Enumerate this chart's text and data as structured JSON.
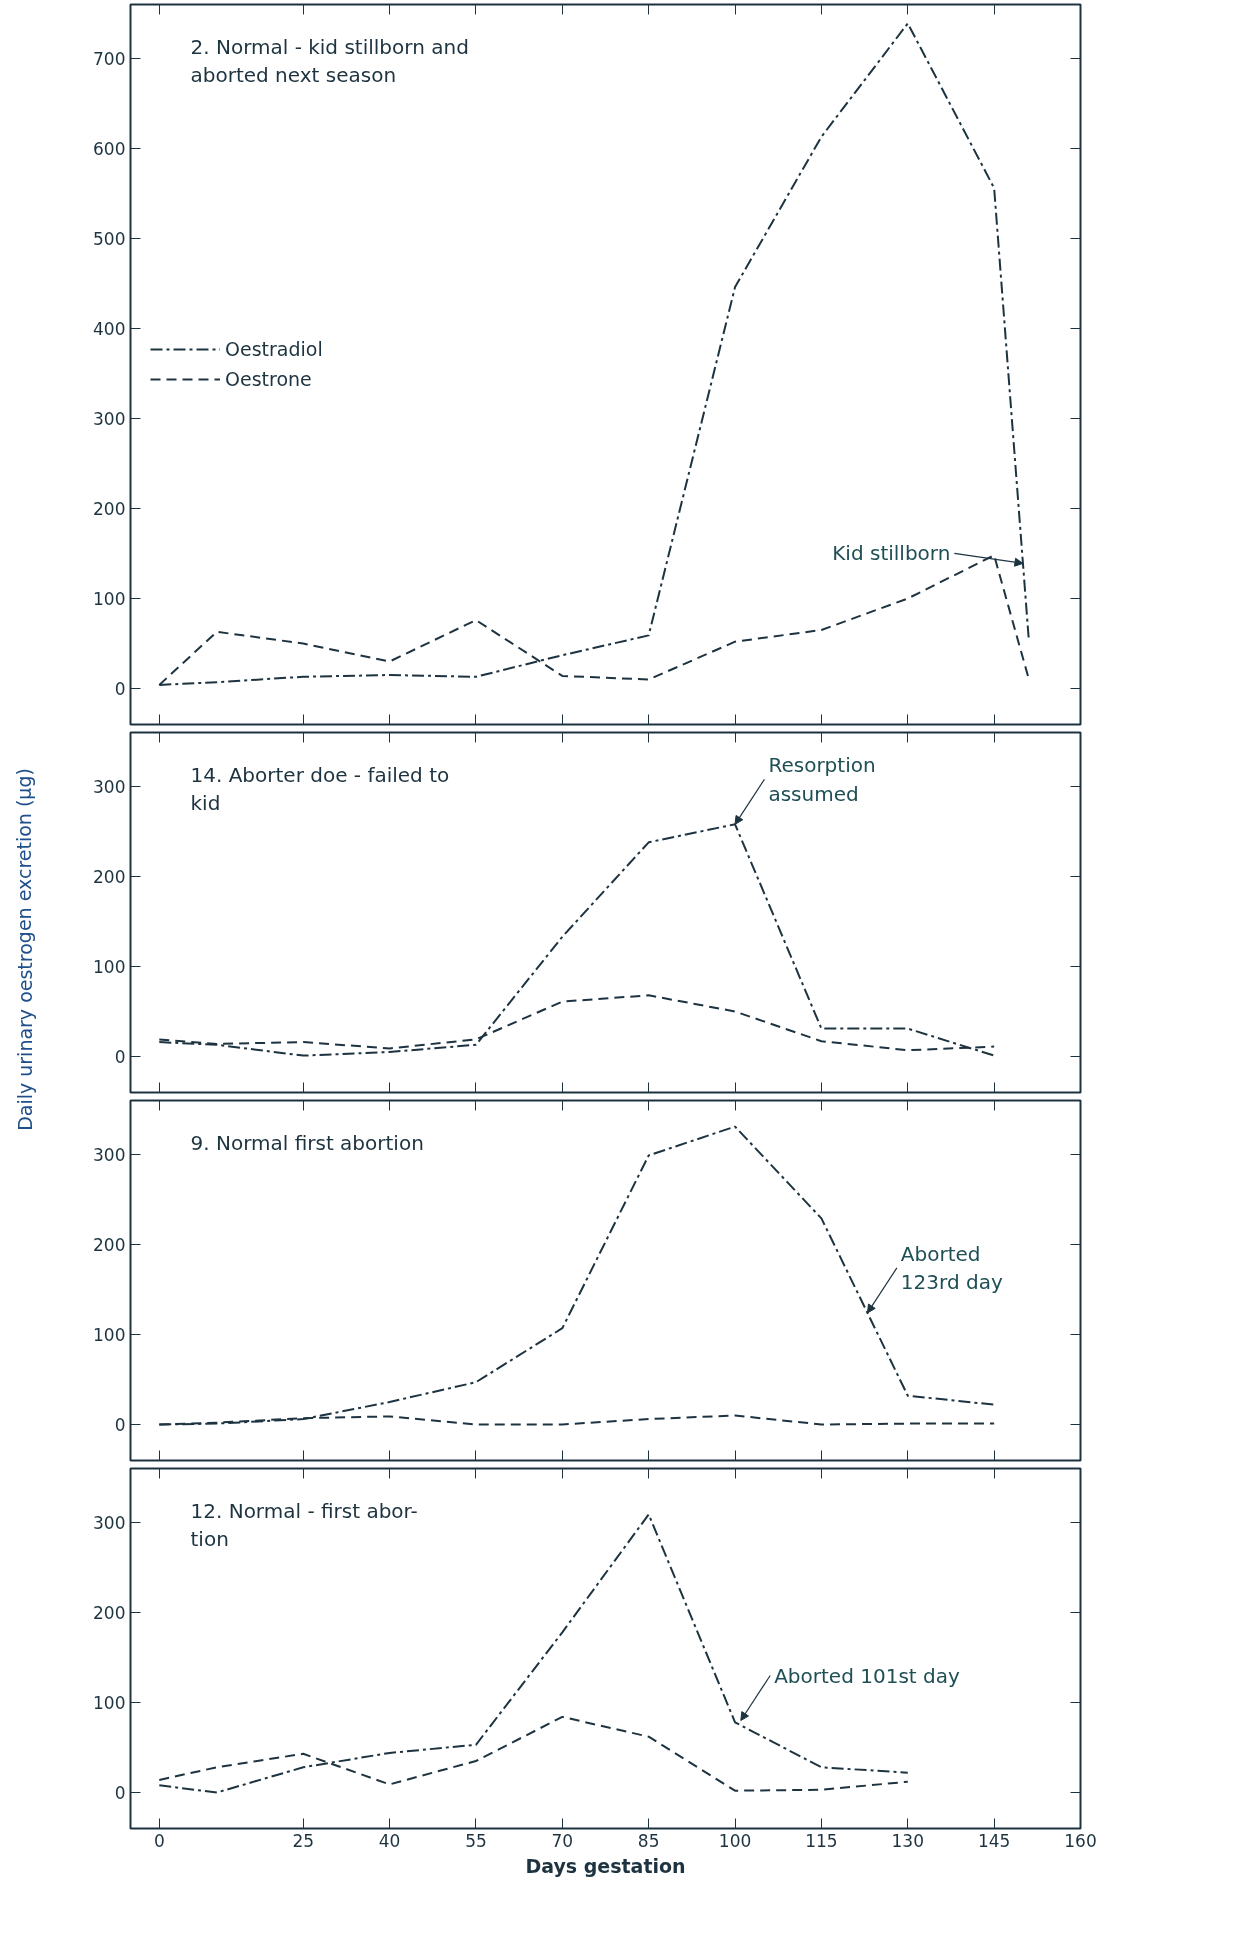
{
  "chart_data": [
    {
      "type": "line",
      "ylabel": "Daily urinary oestrogen excretion (μg)",
      "x": [
        0,
        10,
        25,
        40,
        55,
        70,
        85,
        100,
        115,
        130,
        145,
        151
      ],
      "xlim": [
        -5,
        160
      ],
      "xticks": [
        0,
        25,
        40,
        55,
        70,
        85,
        100,
        115,
        130,
        145,
        160
      ],
      "ylim": [
        -40,
        760
      ],
      "yticks": [
        0,
        100,
        200,
        300,
        400,
        500,
        600,
        700
      ],
      "tick_labels": "y",
      "grid": false,
      "legend": "left",
      "marker": "none",
      "series": [
        {
          "name": "Oestradiol",
          "color": "#1d3340",
          "line_style": "dashdot",
          "values": [
            4,
            7,
            13,
            15,
            13,
            37,
            59,
            446,
            613,
            739,
            556,
            56
          ]
        },
        {
          "name": "Oestrone",
          "color": "#1d3340",
          "line_style": "dashed",
          "values": [
            4,
            63,
            50,
            30,
            76,
            14,
            10,
            52,
            65,
            100,
            148,
            11
          ]
        }
      ],
      "annotations": [
        "2.  Normal - kid stillborn and\n      aborted next season",
        {
          "text": "Kid stillborn",
          "x": 150,
          "y": 139
        }
      ]
    },
    {
      "type": "line",
      "x": [
        0,
        10,
        25,
        40,
        55,
        70,
        85,
        100,
        115,
        130,
        145
      ],
      "xlim": [
        -5,
        160
      ],
      "xticks": [
        0,
        25,
        40,
        55,
        70,
        85,
        100,
        115,
        130,
        145,
        160
      ],
      "ylim": [
        -40,
        360
      ],
      "yticks": [
        0,
        100,
        200,
        300
      ],
      "tick_labels": "y",
      "grid": false,
      "marker": "none",
      "series": [
        {
          "color": "#1d3340",
          "line_style": "dashdot",
          "values": [
            16,
            13,
            1,
            5,
            13,
            133,
            238,
            258,
            31,
            31,
            1
          ]
        },
        {
          "color": "#1d3340",
          "line_style": "dashed",
          "values": [
            19,
            14,
            16,
            9,
            19,
            61,
            68,
            50,
            17,
            7,
            11
          ]
        }
      ],
      "annotations": [
        "14.  Aborter doe - failed to\n                kid",
        {
          "text": "Resorption\nassumed",
          "x": 100,
          "y": 258
        }
      ]
    },
    {
      "type": "line",
      "x": [
        0,
        10,
        25,
        40,
        55,
        70,
        85,
        100,
        115,
        130,
        145
      ],
      "xlim": [
        -5,
        160
      ],
      "xticks": [
        0,
        25,
        40,
        55,
        70,
        85,
        100,
        115,
        130,
        145,
        160
      ],
      "ylim": [
        -40,
        360
      ],
      "yticks": [
        0,
        100,
        200,
        300
      ],
      "tick_labels": "y",
      "grid": false,
      "marker": "none",
      "series": [
        {
          "color": "#1d3340",
          "line_style": "dashdot",
          "values": [
            0,
            1,
            6,
            25,
            47,
            107,
            299,
            331,
            229,
            32,
            22
          ]
        },
        {
          "color": "#1d3340",
          "line_style": "dashed",
          "values": [
            0,
            2,
            7,
            9,
            0,
            0,
            6,
            10,
            0,
            1,
            1
          ]
        }
      ],
      "annotations": [
        "9.  Normal first abortion",
        {
          "text": "Aborted\n123rd day",
          "x": 123,
          "y": 124
        }
      ]
    },
    {
      "type": "line",
      "xlabel": "Days gestation",
      "x": [
        0,
        10,
        25,
        40,
        55,
        70,
        85,
        100,
        115,
        130
      ],
      "xlim": [
        -5,
        160
      ],
      "xticks": [
        0,
        25,
        40,
        55,
        70,
        85,
        100,
        115,
        130,
        145,
        160
      ],
      "ylim": [
        -40,
        360
      ],
      "yticks": [
        0,
        100,
        200,
        300
      ],
      "grid": false,
      "marker": "none",
      "series": [
        {
          "color": "#1d3340",
          "line_style": "dashdot",
          "values": [
            8,
            0,
            28,
            44,
            53,
            178,
            309,
            78,
            28,
            22
          ]
        },
        {
          "color": "#1d3340",
          "line_style": "dashed",
          "values": [
            14,
            28,
            43,
            9,
            35,
            84,
            62,
            2,
            3,
            12
          ]
        }
      ],
      "annotations": [
        "12.  Normal - first abor-\n                tion",
        {
          "text": "Aborted 101st day",
          "x": 101,
          "y": 80
        }
      ]
    }
  ]
}
